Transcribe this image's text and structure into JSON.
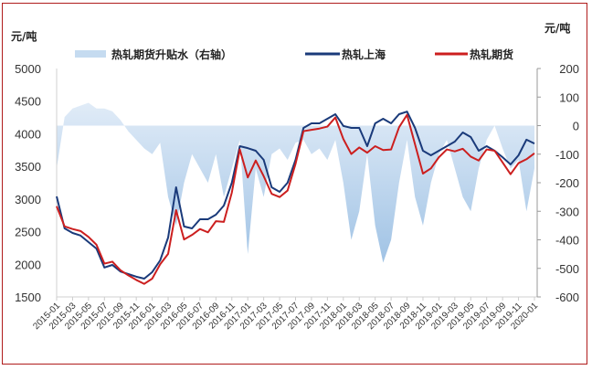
{
  "chart_data": {
    "type": "line",
    "title": "",
    "left_unit": "元/吨",
    "right_unit": "元/吨",
    "left_axis": {
      "min": 1500,
      "max": 5000,
      "ticks": [
        1500,
        2000,
        2500,
        3000,
        3500,
        4000,
        4500,
        5000
      ]
    },
    "right_axis": {
      "min": -600,
      "max": 200,
      "ticks": [
        -600,
        -500,
        -400,
        -300,
        -200,
        -100,
        0,
        100,
        200
      ]
    },
    "x_tick_labels": [
      "2015-01",
      "2015-03",
      "2015-05",
      "2015-07",
      "2015-09",
      "2015-11",
      "2016-01",
      "2016-03",
      "2016-05",
      "2016-07",
      "2016-09",
      "2016-11",
      "2017-01",
      "2017-03",
      "2017-05",
      "2017-07",
      "2017-09",
      "2017-11",
      "2018-01",
      "2018-03",
      "2018-05",
      "2018-07",
      "2018-09",
      "2018-11",
      "2019-01",
      "2019-03",
      "2019-05",
      "2019-07",
      "2019-09",
      "2019-11",
      "2020-01"
    ],
    "legend_position": "top",
    "grid": false,
    "series": [
      {
        "name": "热轧期货升贴水（右轴）",
        "type": "area",
        "axis": "right",
        "color": "#9cc3e6",
        "values": [
          -150,
          30,
          60,
          70,
          80,
          60,
          60,
          50,
          20,
          -20,
          -50,
          -80,
          -100,
          -60,
          -250,
          -350,
          -200,
          -100,
          -150,
          -200,
          -100,
          -250,
          -150,
          -50,
          -450,
          -150,
          -250,
          -100,
          -80,
          -120,
          -60,
          -50,
          -100,
          -80,
          -120,
          -50,
          -200,
          -400,
          -300,
          -100,
          -350,
          -480,
          -400,
          -200,
          -50,
          -250,
          -350,
          -200,
          -100,
          -50,
          -150,
          -250,
          -300,
          -150,
          -50,
          0,
          -80,
          -150,
          -120,
          -300,
          -150
        ]
      },
      {
        "name": "热轧上海",
        "type": "line",
        "axis": "left",
        "color": "#1a3a7a",
        "values": [
          3040,
          2550,
          2480,
          2440,
          2340,
          2240,
          1950,
          1990,
          1890,
          1850,
          1810,
          1780,
          1880,
          2060,
          2410,
          3180,
          2580,
          2550,
          2690,
          2690,
          2760,
          2900,
          3250,
          3810,
          3780,
          3740,
          3600,
          3180,
          3110,
          3250,
          3600,
          4090,
          4160,
          4160,
          4230,
          4300,
          4120,
          4090,
          4090,
          3810,
          4160,
          4230,
          4160,
          4300,
          4340,
          4090,
          3740,
          3670,
          3740,
          3810,
          3880,
          4020,
          3950,
          3740,
          3810,
          3740,
          3640,
          3530,
          3670,
          3910,
          3850
        ]
      },
      {
        "name": "热轧期货",
        "type": "line",
        "axis": "left",
        "color": "#cc1f1f",
        "values": [
          2890,
          2580,
          2540,
          2510,
          2420,
          2300,
          2010,
          2040,
          1910,
          1830,
          1760,
          1700,
          1780,
          2000,
          2160,
          2830,
          2380,
          2450,
          2540,
          2490,
          2660,
          2650,
          3100,
          3760,
          3330,
          3590,
          3350,
          3080,
          3030,
          3130,
          3540,
          4040,
          4060,
          4080,
          4110,
          4250,
          3920,
          3690,
          3790,
          3710,
          3810,
          3750,
          3760,
          4100,
          4290,
          3840,
          3390,
          3470,
          3640,
          3760,
          3730,
          3770,
          3650,
          3590,
          3760,
          3740,
          3560,
          3380,
          3550,
          3610,
          3700
        ]
      }
    ]
  }
}
